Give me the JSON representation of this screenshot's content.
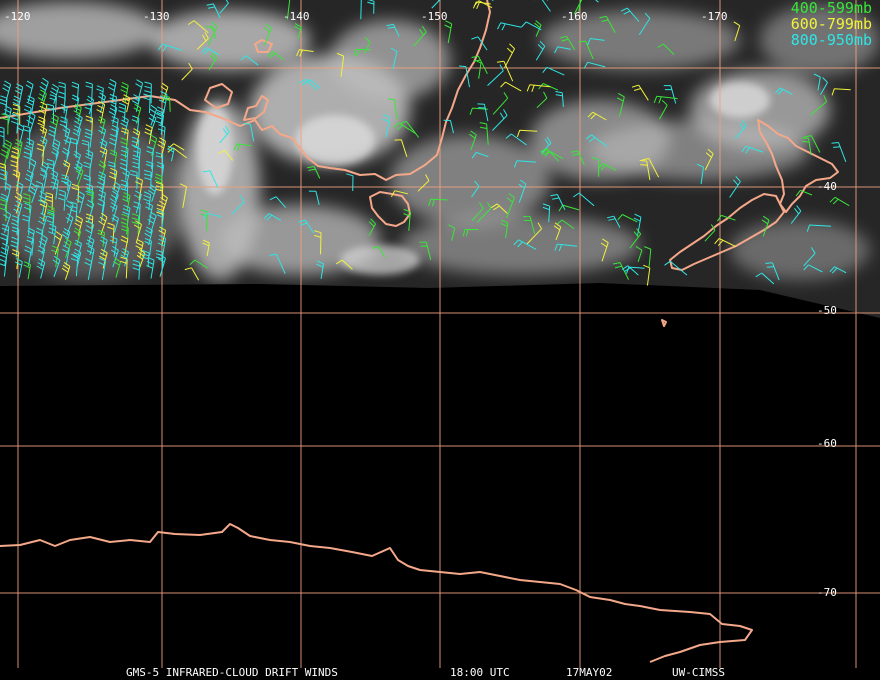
{
  "lon_labels": [
    "-120",
    "-130",
    "-140",
    "-150",
    "-160",
    "-170"
  ],
  "lat_labels": [
    "-40",
    "-50",
    "-60",
    "-70"
  ],
  "legend": [
    {
      "label": "400-599mb",
      "color": "#39e639"
    },
    {
      "label": "600-799mb",
      "color": "#f2f23a"
    },
    {
      "label": "800-950mb",
      "color": "#2ee6e6"
    }
  ],
  "footer": {
    "product": "GMS-5 INFRARED-CLOUD DRIFT WINDS",
    "time": "18:00 UTC",
    "date": "17MAY02",
    "source": "UW-CIMSS"
  },
  "colors": {
    "coastline": "#f4a88a",
    "grid": "#f0a080",
    "background": "#000000"
  }
}
